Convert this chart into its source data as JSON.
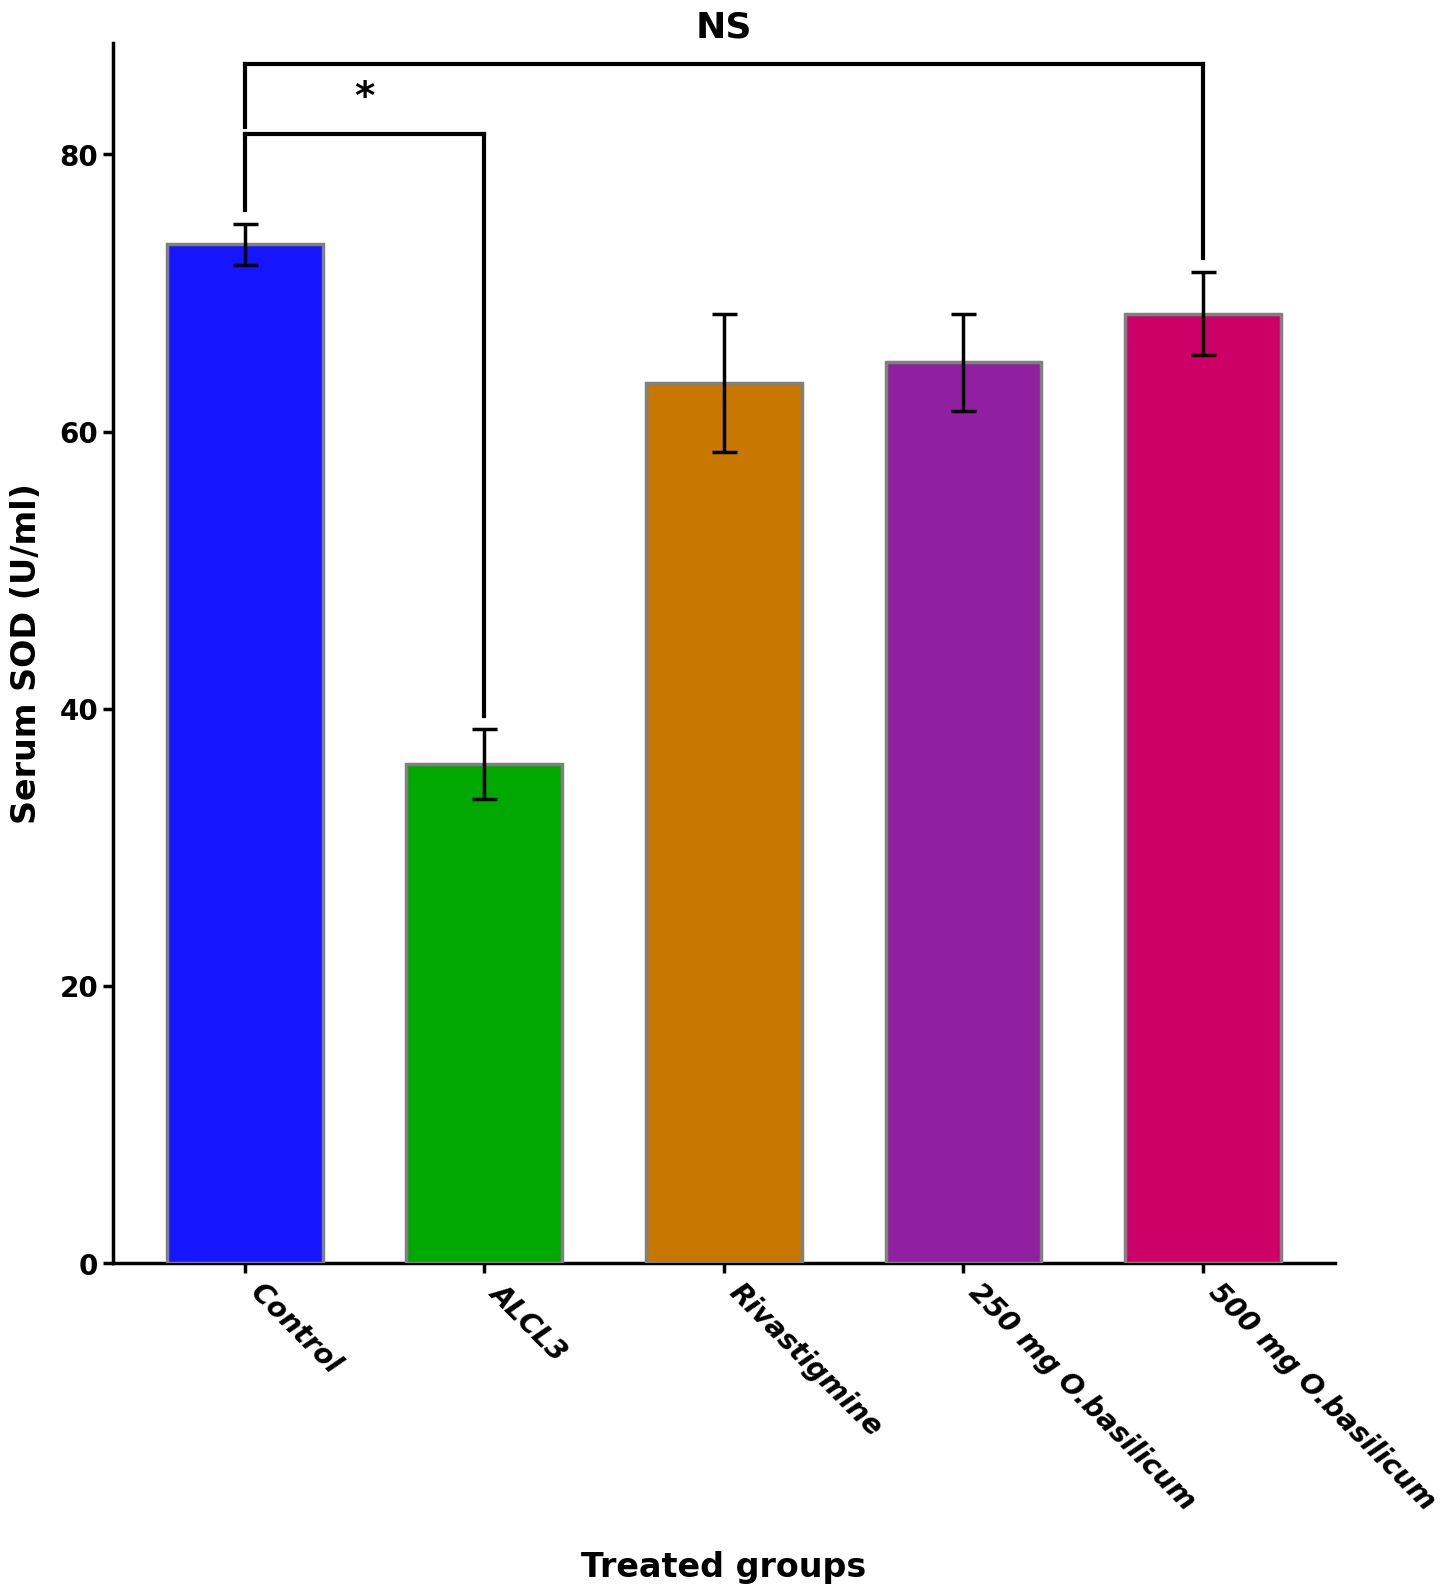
{
  "categories": [
    "Control",
    "ALCL3",
    "Rivastigmine",
    "250 mg O.basilicum",
    "500 mg O.basilicum"
  ],
  "values": [
    73.5,
    36.0,
    63.5,
    65.0,
    68.5
  ],
  "errors": [
    1.5,
    2.5,
    5.0,
    3.5,
    3.0
  ],
  "bar_colors": [
    "#1515ff",
    "#00a800",
    "#c87800",
    "#9020a0",
    "#cc0066"
  ],
  "bar_edge_color": "#808080",
  "bar_edge_width": 2.5,
  "ylabel": "Serum SOD (U/ml)",
  "xlabel": "Treated groups",
  "ylim": [
    0,
    88
  ],
  "yticks": [
    0,
    20,
    40,
    60,
    80
  ],
  "background_color": "#ffffff",
  "ylabel_fontsize": 24,
  "xlabel_fontsize": 24,
  "tick_fontsize": 20,
  "xtick_rotation": -45,
  "bar_width": 0.65,
  "significance_star": "*",
  "ns_label": "NS",
  "ns_fontsize": 26,
  "star_fontsize": 28,
  "lw_bracket": 3.0
}
